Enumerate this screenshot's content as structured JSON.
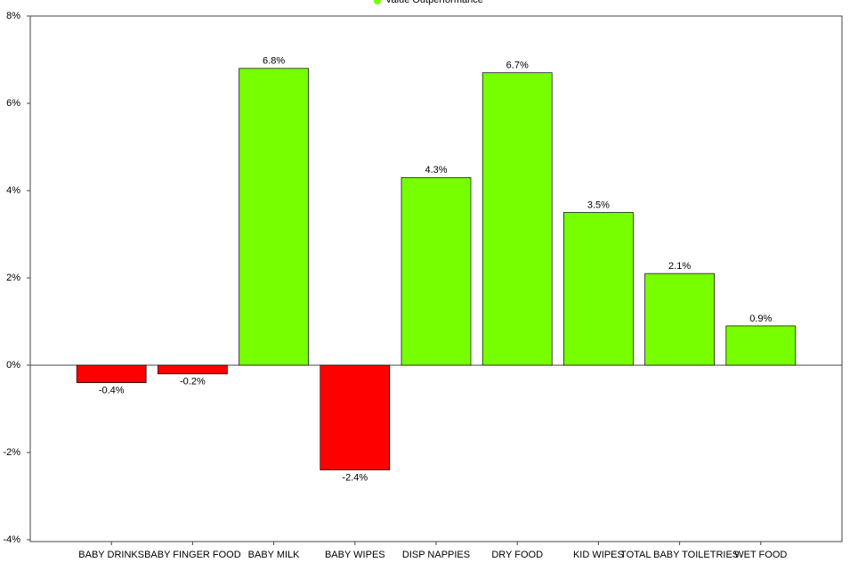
{
  "chart_data": {
    "type": "bar",
    "categories": [
      "BABY DRINKS",
      "BABY FINGER FOOD",
      "BABY MILK",
      "BABY WIPES",
      "DISP NAPPIES",
      "DRY FOOD",
      "KID WIPES",
      "TOTAL BABY TOILETRIES",
      "WET FOOD"
    ],
    "series": [
      {
        "name": "Value Outperformance",
        "color": "#77ff00",
        "negative_color": "#ff0000",
        "values": [
          -0.4,
          -0.2,
          6.8,
          -2.4,
          4.3,
          6.7,
          3.5,
          2.1,
          0.9
        ],
        "value_labels": [
          "-0.4%",
          "-0.2%",
          "6.8%",
          "-2.4%",
          "4.3%",
          "6.7%",
          "3.5%",
          "2.1%",
          "0.9%"
        ]
      }
    ],
    "ylim": [
      -4,
      8
    ],
    "yticks": [
      {
        "value": -4,
        "label": "-4%"
      },
      {
        "value": -2,
        "label": "-2%"
      },
      {
        "value": 0,
        "label": "0%"
      },
      {
        "value": 2,
        "label": "2%"
      },
      {
        "value": 4,
        "label": "4%"
      },
      {
        "value": 6,
        "label": "6%"
      },
      {
        "value": 8,
        "label": "8%"
      }
    ],
    "legend": "top"
  }
}
